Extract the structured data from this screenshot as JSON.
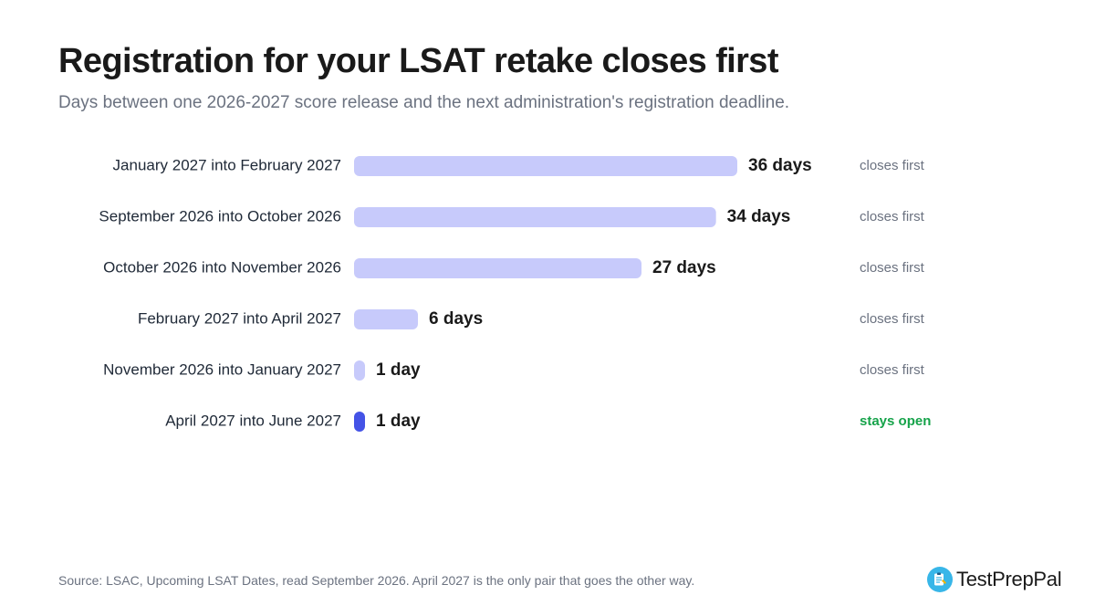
{
  "header": {
    "title": "Registration for your LSAT retake closes first",
    "subtitle": "Days between one 2026-2027 score release and the next administration's registration deadline."
  },
  "chart_data": {
    "type": "bar",
    "orientation": "horizontal",
    "title": "Registration for your LSAT retake closes first",
    "subtitle": "Days between one 2026-2027 score release and the next administration's registration deadline.",
    "categories": [
      "January 2027 into February 2027",
      "September 2026 into October 2026",
      "October 2026 into November 2026",
      "February 2027 into April 2027",
      "November 2026 into January 2027",
      "April 2027 into June 2027"
    ],
    "values": [
      36,
      34,
      27,
      6,
      1,
      1
    ],
    "value_labels": [
      "36 days",
      "34 days",
      "27 days",
      "6 days",
      "1 day",
      "1 day"
    ],
    "status": [
      "closes first",
      "closes first",
      "closes first",
      "closes first",
      "closes first",
      "stays open"
    ],
    "xlim": [
      0,
      36
    ],
    "grid": false,
    "colors": {
      "closes_first_bar": "#c7cafb",
      "stays_open_bar": "#4453e6",
      "closes_first_text": "#6b7280",
      "stays_open_text": "#16a34a"
    }
  },
  "footer": {
    "source": "Source: LSAC, Upcoming LSAT Dates, read September 2026. April 2027 is the only pair that goes the other way.",
    "brand_name": "TestPrepPal",
    "brand_icon": "clipboard-pencil-icon"
  }
}
